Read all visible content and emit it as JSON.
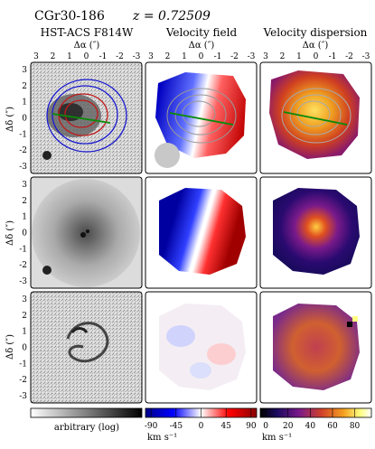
{
  "header": {
    "object_name": "CGr30-186",
    "redshift": "z = 0.72509"
  },
  "columns": [
    {
      "title": "HST-ACS F814W",
      "axis_label": "Δα (″)"
    },
    {
      "title": "Velocity field",
      "axis_label": "Δα (″)"
    },
    {
      "title": "Velocity dispersion",
      "axis_label": "Δα (″)"
    }
  ],
  "x_ticks": [
    "3",
    "2",
    "1",
    "0",
    "-1",
    "-2",
    "-3"
  ],
  "y_axis_label": "Δδ (″)",
  "y_ticks": [
    "3",
    "2",
    "1",
    "0",
    "-1",
    "-2",
    "-3"
  ],
  "colorbars": [
    {
      "name": "hst",
      "label": "arbitrary (log)",
      "ticks": [],
      "colors": [
        "#ffffff",
        "#000000"
      ]
    },
    {
      "name": "velocity",
      "label": "km s⁻¹",
      "ticks": [
        "-90",
        "-45",
        "0",
        "45",
        "90"
      ],
      "colors": [
        "#00008b",
        "#0000ff",
        "#ffffff",
        "#ff0000",
        "#8b0000"
      ]
    },
    {
      "name": "dispersion",
      "label": "km s⁻¹",
      "ticks": [
        "0",
        "20",
        "40",
        "60",
        "80"
      ],
      "colors": [
        "#000000",
        "#1a0a5e",
        "#7a1a8a",
        "#d0402a",
        "#f5a020",
        "#ffff80",
        "#ffffff"
      ]
    }
  ],
  "rows": [
    {
      "name": "observed"
    },
    {
      "name": "model"
    },
    {
      "name": "residual"
    }
  ]
}
